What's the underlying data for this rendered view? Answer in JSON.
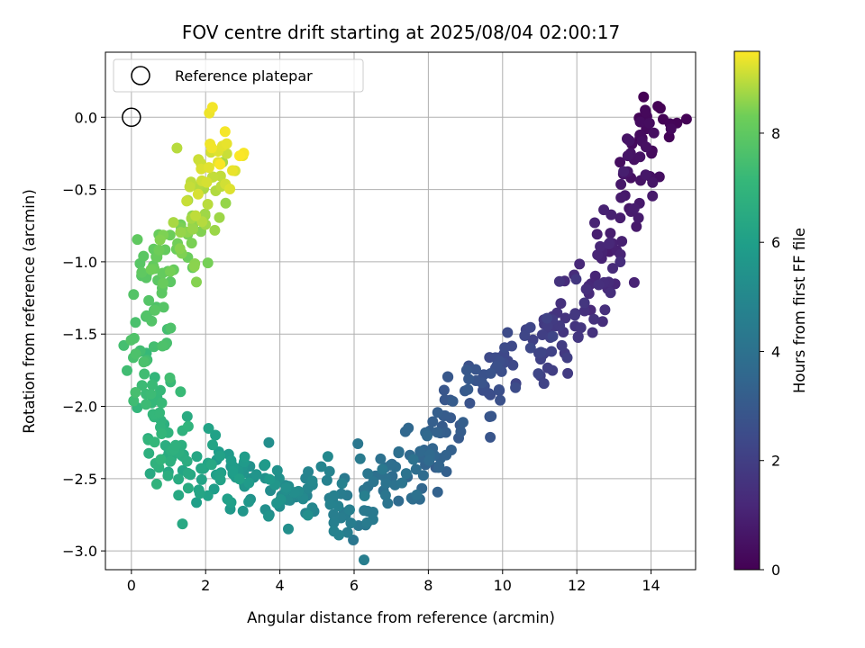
{
  "chart_data": {
    "type": "scatter",
    "title": "FOV centre drift starting at 2025/08/04 02:00:17",
    "xlabel": "Angular distance from reference (arcmin)",
    "ylabel": "Rotation from reference (arcmin)",
    "colorbar_label": "Hours from first FF file",
    "xlim": [
      -0.7,
      15.2
    ],
    "ylim": [
      -3.13,
      0.45
    ],
    "clim": [
      0,
      9.5
    ],
    "colormap": "viridis",
    "grid": true,
    "legend": {
      "placement": "top-left",
      "entries": [
        "Reference platepar"
      ]
    },
    "x_ticks": [
      0,
      2,
      4,
      6,
      8,
      10,
      12,
      14
    ],
    "y_ticks": [
      0.0,
      -0.5,
      -1.0,
      -1.5,
      -2.0,
      -2.5,
      -3.0
    ],
    "y_tick_labels": [
      "0.0",
      "−0.5",
      "−1.0",
      "−1.5",
      "−2.0",
      "−2.5",
      "−3.0"
    ],
    "colorbar_ticks": [
      0,
      2,
      4,
      6,
      8
    ],
    "reference_point": {
      "x": 0,
      "y": 0
    },
    "trend_knots": [
      {
        "t": 0.0,
        "x": 14.2,
        "y": 0.1
      },
      {
        "t": 0.5,
        "x": 13.8,
        "y": -0.3
      },
      {
        "t": 1.0,
        "x": 13.1,
        "y": -0.85
      },
      {
        "t": 1.5,
        "x": 12.3,
        "y": -1.35
      },
      {
        "t": 2.0,
        "x": 11.2,
        "y": -1.55
      },
      {
        "t": 2.5,
        "x": 9.9,
        "y": -1.7
      },
      {
        "t": 3.0,
        "x": 8.8,
        "y": -2.0
      },
      {
        "t": 3.5,
        "x": 7.9,
        "y": -2.35
      },
      {
        "t": 4.0,
        "x": 6.9,
        "y": -2.55
      },
      {
        "t": 4.5,
        "x": 5.8,
        "y": -2.75
      },
      {
        "t": 5.0,
        "x": 4.6,
        "y": -2.6
      },
      {
        "t": 5.5,
        "x": 3.4,
        "y": -2.5
      },
      {
        "t": 6.0,
        "x": 2.3,
        "y": -2.5
      },
      {
        "t": 6.5,
        "x": 1.4,
        "y": -2.4
      },
      {
        "t": 7.0,
        "x": 0.7,
        "y": -2.1
      },
      {
        "t": 7.5,
        "x": 0.4,
        "y": -1.6
      },
      {
        "t": 8.0,
        "x": 0.7,
        "y": -1.1
      },
      {
        "t": 8.5,
        "x": 1.4,
        "y": -0.8
      },
      {
        "t": 9.0,
        "x": 2.1,
        "y": -0.45
      },
      {
        "t": 9.5,
        "x": 2.4,
        "y": -0.1
      }
    ],
    "points_per_segment": 30,
    "scatter_x": 0.35,
    "scatter_y": 0.13
  }
}
